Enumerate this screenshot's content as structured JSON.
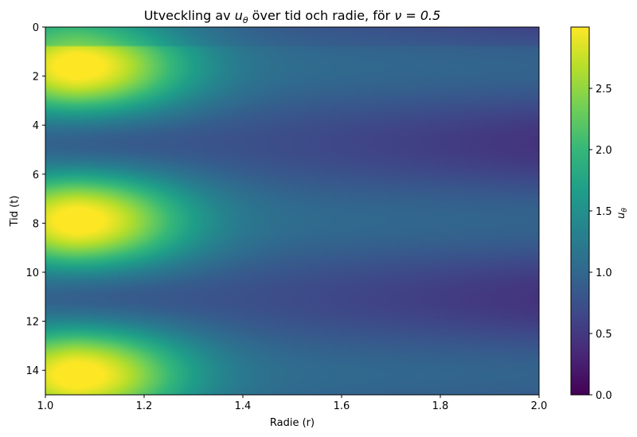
{
  "chart_data": {
    "type": "heatmap",
    "title_prefix": "Utveckling av ",
    "title_var": "u",
    "title_var_sub": "θ",
    "title_suffix": " över tid och radie, för ",
    "title_math": "ν = 0.5",
    "xlabel": "Radie (r)",
    "ylabel": "Tid (t)",
    "xlim": [
      1.0,
      2.0
    ],
    "ylim": [
      0,
      15
    ],
    "y_inverted": true,
    "x_ticks": [
      "1.0",
      "1.2",
      "1.4",
      "1.6",
      "1.8",
      "2.0"
    ],
    "y_ticks": [
      "0",
      "2",
      "4",
      "6",
      "8",
      "10",
      "12",
      "14"
    ],
    "colormap": "viridis",
    "colorbar": {
      "label_var": "u",
      "label_sub": "θ",
      "range": [
        0.0,
        3.0
      ],
      "ticks": [
        "0.0",
        "0.5",
        "1.0",
        "1.5",
        "2.0",
        "2.5"
      ]
    },
    "field_description": {
      "peak_times": [
        1.6,
        7.9,
        14.1
      ],
      "trough_times": [
        4.75,
        10.95
      ],
      "peak_value_at_r1": 3.0,
      "trough_value_at_r1": 0.95,
      "value_at_r2_peak": 0.95,
      "value_at_r2_trough": 0.45
    },
    "colors": {
      "viridis": [
        "#440154",
        "#482878",
        "#3e4989",
        "#31688e",
        "#26828e",
        "#1f9e89",
        "#35b779",
        "#6ece58",
        "#b5de2b",
        "#fde725"
      ]
    }
  }
}
